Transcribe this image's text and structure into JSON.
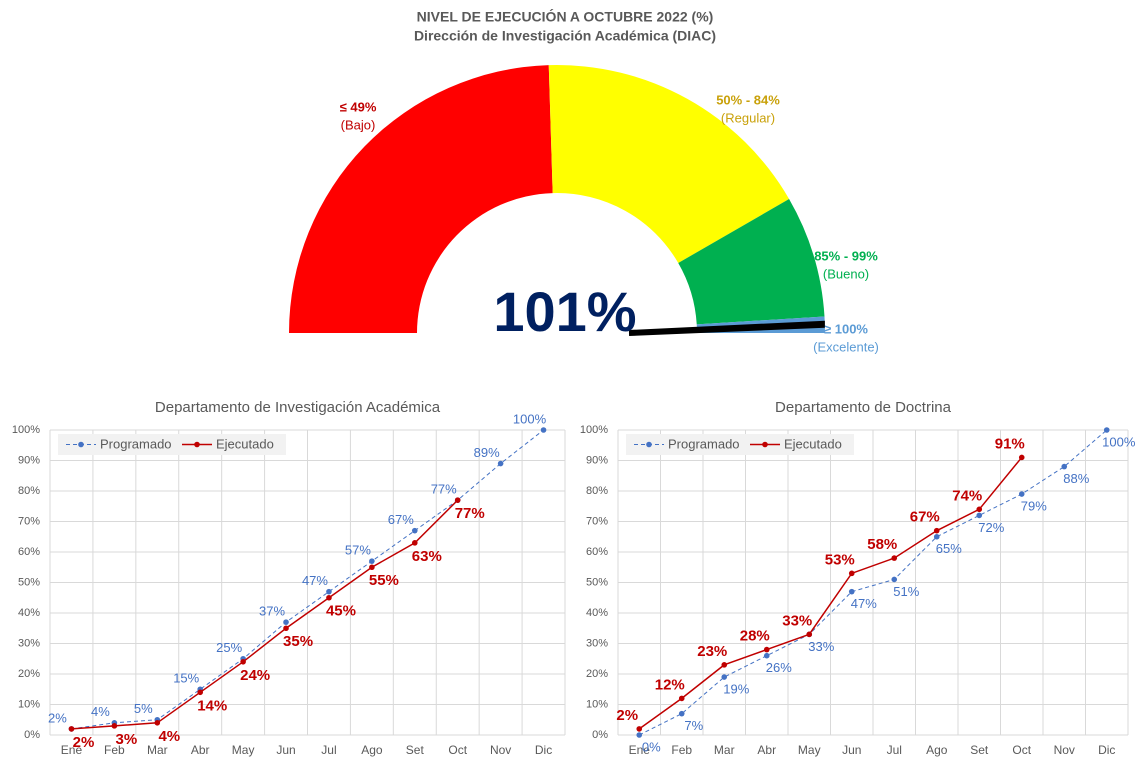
{
  "chart_data": [
    {
      "type": "gauge",
      "title": "NIVEL DE EJECUCIÓN A OCTUBRE 2022 (%)",
      "subtitle": "Dirección de Investigación Académica (DIAC)",
      "value": 101,
      "value_label": "101%",
      "value_color": "#002060",
      "ylim": [
        0,
        102
      ],
      "bands": [
        {
          "label": "≤ 49%",
          "sublabel": "(Bajo)",
          "from": 0,
          "to": 50,
          "color": "#ff0000",
          "text_color": "#c00000"
        },
        {
          "label": "50% - 84%",
          "sublabel": "(Regular)",
          "from": 50,
          "to": 85,
          "color": "#ffff00",
          "text_color": "#c9a10a"
        },
        {
          "label": "85% - 99%",
          "sublabel": "(Bueno)",
          "from": 85,
          "to": 100,
          "color": "#00b050",
          "text_color": "#00b050"
        },
        {
          "label": "≥ 100%",
          "sublabel": "(Excelente)",
          "from": 100,
          "to": 102,
          "color": "#5b9bd5",
          "text_color": "#5b9bd5"
        }
      ]
    },
    {
      "type": "line",
      "title": "Departamento de Investigación Académica",
      "categories": [
        "Ene",
        "Feb",
        "Mar",
        "Abr",
        "May",
        "Jun",
        "Jul",
        "Ago",
        "Set",
        "Oct",
        "Nov",
        "Dic"
      ],
      "series": [
        {
          "name": "Programado",
          "color": "#4472c4",
          "dashed": true,
          "values": [
            2,
            4,
            5,
            15,
            25,
            37,
            47,
            57,
            67,
            77,
            89,
            100
          ],
          "value_labels": [
            "2%",
            "4%",
            "5%",
            "15%",
            "25%",
            "37%",
            "47%",
            "57%",
            "67%",
            "77%",
            "89%",
            "100%"
          ]
        },
        {
          "name": "Ejecutado",
          "color": "#c00000",
          "dashed": false,
          "values": [
            2,
            3,
            4,
            14,
            24,
            35,
            45,
            55,
            63,
            77,
            null,
            null
          ],
          "value_labels": [
            "2%",
            "3%",
            "4%",
            "14%",
            "24%",
            "35%",
            "45%",
            "55%",
            "63%",
            "77%",
            null,
            null
          ]
        }
      ],
      "ylim": [
        0,
        100
      ],
      "yticks": [
        {
          "value": 0,
          "label": "0%"
        },
        {
          "value": 10,
          "label": "10%"
        },
        {
          "value": 20,
          "label": "20%"
        },
        {
          "value": 30,
          "label": "30%"
        },
        {
          "value": 40,
          "label": "40%"
        },
        {
          "value": 50,
          "label": "50%"
        },
        {
          "value": 60,
          "label": "60%"
        },
        {
          "value": 70,
          "label": "70%"
        },
        {
          "value": 80,
          "label": "80%"
        },
        {
          "value": 90,
          "label": "90%"
        },
        {
          "value": 100,
          "label": "100%"
        }
      ],
      "grid": true,
      "legend": "upper left"
    },
    {
      "type": "line",
      "title": "Departamento de Doctrina",
      "categories": [
        "Ene",
        "Feb",
        "Mar",
        "Abr",
        "May",
        "Jun",
        "Jul",
        "Ago",
        "Set",
        "Oct",
        "Nov",
        "Dic"
      ],
      "series": [
        {
          "name": "Programado",
          "color": "#4472c4",
          "dashed": true,
          "values": [
            0,
            7,
            19,
            26,
            33,
            47,
            51,
            65,
            72,
            79,
            88,
            100
          ],
          "value_labels": [
            "0%",
            "7%",
            "19%",
            "26%",
            "33%",
            "47%",
            "51%",
            "65%",
            "72%",
            "79%",
            "88%",
            "100%"
          ]
        },
        {
          "name": "Ejecutado",
          "color": "#c00000",
          "dashed": false,
          "values": [
            2,
            12,
            23,
            28,
            33,
            53,
            58,
            67,
            74,
            91,
            null,
            null
          ],
          "value_labels": [
            "2%",
            "12%",
            "23%",
            "28%",
            "33%",
            "53%",
            "58%",
            "67%",
            "74%",
            "91%",
            null,
            null
          ]
        }
      ],
      "ylim": [
        0,
        100
      ],
      "yticks": [
        {
          "value": 0,
          "label": "0%"
        },
        {
          "value": 10,
          "label": "10%"
        },
        {
          "value": 20,
          "label": "20%"
        },
        {
          "value": 30,
          "label": "30%"
        },
        {
          "value": 40,
          "label": "40%"
        },
        {
          "value": 50,
          "label": "50%"
        },
        {
          "value": 60,
          "label": "60%"
        },
        {
          "value": 70,
          "label": "70%"
        },
        {
          "value": 80,
          "label": "80%"
        },
        {
          "value": 90,
          "label": "90%"
        },
        {
          "value": 100,
          "label": "100%"
        }
      ],
      "grid": true,
      "legend": "upper left"
    }
  ]
}
